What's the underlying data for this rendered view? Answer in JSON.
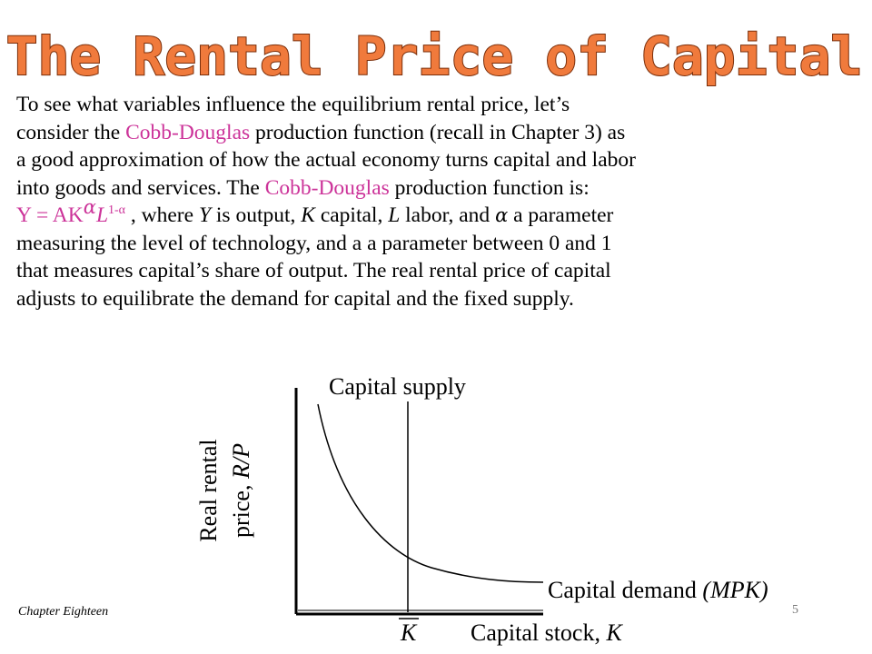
{
  "slide": {
    "title": "The Rental Price of Capital",
    "title_fill": "#f07a3c",
    "title_outline": "#7a2e0a",
    "accent_pink": "#cc3399"
  },
  "paragraph": {
    "line1": "To see what variables influence the equilibrium rental price, let’s",
    "line2_a": "consider the ",
    "line2_pink": "Cobb-Douglas",
    "line2_b": " production function (recall in Chapter 3) as",
    "line3": "a good approximation of how the actual economy turns capital and labor",
    "line4_a": "into goods and services.  The ",
    "line4_pink": "Cobb-Douglas",
    "line4_b": " production function is:",
    "formula_lhs": "Y = AK",
    "formula_exp1": "α",
    "formula_l": "L",
    "formula_exp2": "1-α",
    "line5_rest_1": " , where ",
    "line5_y": "Y",
    "line5_rest_2": " is output, ",
    "line5_k": "K",
    "line5_rest_3": " capital, ",
    "line5_l": "L",
    "line5_rest_4": " labor, and ",
    "line5_alpha": "α",
    "line5_rest_5": " a parameter",
    "line6": "measuring the level of technology, and a a parameter between 0 and 1",
    "line7": "that measures capital’s share of output. The real rental price of capital",
    "line8": "adjusts to equilibrate the demand for capital and the fixed supply."
  },
  "diagram": {
    "supply_label": "Capital supply",
    "demand_label_a": "Capital demand ",
    "demand_label_b": "(MPK)",
    "y_label_line1": "Real rental",
    "y_label_line2_a": "price, ",
    "y_label_line2_b": "R/P",
    "k_bar_label": "K",
    "x_label_a": "Capital stock, ",
    "x_label_b": "K"
  },
  "footer": {
    "chapter": "Chapter Eighteen",
    "page": "5"
  }
}
